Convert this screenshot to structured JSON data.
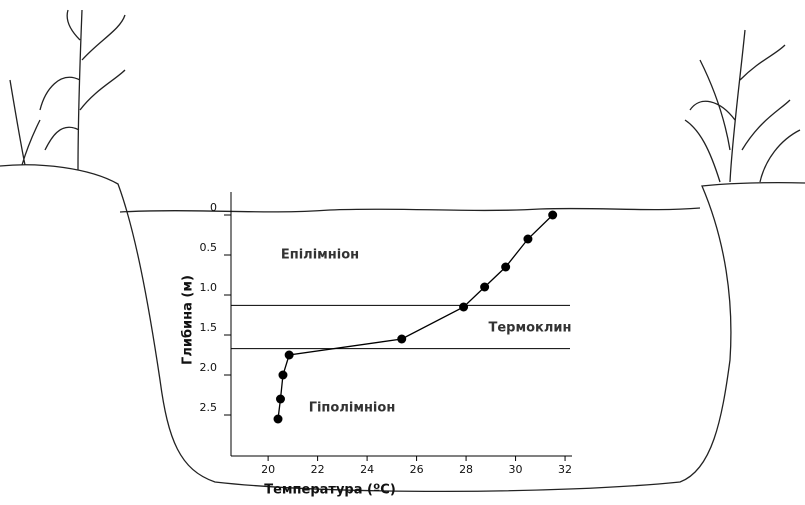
{
  "chart_data": {
    "type": "line",
    "x_label": "Температура (ºC)",
    "y_label": "Глибина (м)",
    "x": [
      31.5,
      30.5,
      29.6,
      28.75,
      27.9,
      25.4,
      20.85,
      20.6,
      20.5,
      20.4
    ],
    "values": [
      0,
      0.3,
      0.65,
      0.9,
      1.15,
      1.55,
      1.75,
      2.0,
      2.3,
      2.55
    ],
    "color": "#000000",
    "xlim": [
      18.5,
      32.2
    ],
    "xticks": [
      20,
      22,
      24,
      26,
      28,
      30,
      32
    ],
    "ylim": [
      -0.25,
      3.0
    ],
    "y_inverted": true,
    "yticks": [
      0,
      0.5,
      {
        "value": 1,
        "label": "1.0"
      },
      1.5,
      {
        "value": 2,
        "label": "2.0"
      },
      2.5
    ],
    "hlines": [
      1.13,
      1.67
    ],
    "annotations": [
      "Епілімніон",
      "Термоклин",
      "Гіполімніон"
    ]
  }
}
